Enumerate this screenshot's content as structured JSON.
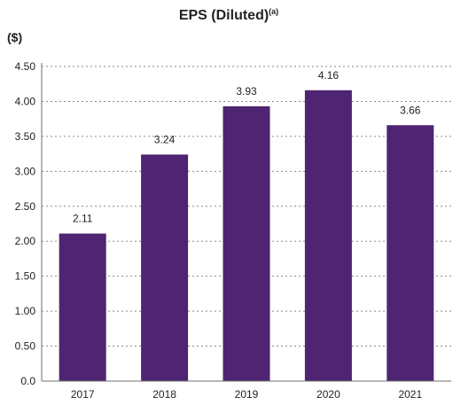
{
  "chart_data": {
    "type": "bar",
    "title": "EPS (Diluted)",
    "title_superscript": "(a)",
    "unit_label": "($)",
    "categories": [
      "2017",
      "2018",
      "2019",
      "2020",
      "2021"
    ],
    "values": [
      2.11,
      3.24,
      3.93,
      4.16,
      3.66
    ],
    "data_labels": [
      "2.11",
      "3.24",
      "3.93",
      "4.16",
      "3.66"
    ],
    "ylim": [
      0,
      4.5
    ],
    "yticks": [
      {
        "value": 0,
        "label": "0.0"
      },
      {
        "value": 0.5,
        "label": "0.50"
      },
      {
        "value": 1.0,
        "label": "1.00"
      },
      {
        "value": 1.5,
        "label": "1.50"
      },
      {
        "value": 2.0,
        "label": "2.00"
      },
      {
        "value": 2.5,
        "label": "2.50"
      },
      {
        "value": 3.0,
        "label": "3.00"
      },
      {
        "value": 3.5,
        "label": "3.50"
      },
      {
        "value": 4.0,
        "label": "4.00"
      },
      {
        "value": 4.5,
        "label": "4.50"
      }
    ],
    "grid": true,
    "bar_color": "#4f2472"
  }
}
